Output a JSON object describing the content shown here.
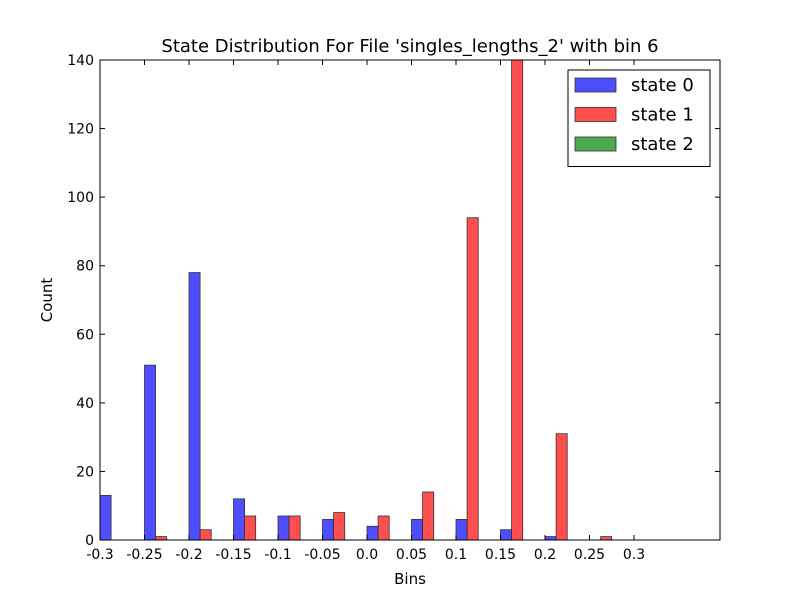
{
  "chart_data": {
    "type": "bar",
    "title": "State Distribution For File 'singles_lengths_2' with bin 6",
    "xlabel": "Bins",
    "ylabel": "Count",
    "ylim": [
      0,
      140
    ],
    "yticks": [
      0,
      20,
      40,
      60,
      80,
      100,
      120,
      140
    ],
    "categories": [
      "-0.3",
      "-0.25",
      "-0.2",
      "-0.15",
      "-0.1",
      "-0.05",
      "0.0",
      "0.05",
      "0.1",
      "0.15",
      "0.2",
      "0.25",
      "0.3"
    ],
    "series": [
      {
        "name": "state 0",
        "color": "#4444ff",
        "values": [
          13,
          51,
          78,
          12,
          7,
          6,
          4,
          6,
          6,
          3,
          1,
          0,
          0
        ]
      },
      {
        "name": "state 1",
        "color": "#ff4444",
        "values": [
          0,
          1,
          3,
          7,
          7,
          8,
          7,
          14,
          94,
          141,
          31,
          1,
          0
        ]
      },
      {
        "name": "state 2",
        "color": "#44a444",
        "values": [
          0,
          0,
          0,
          0,
          0,
          0,
          0,
          0,
          0,
          0,
          0,
          0,
          0
        ]
      }
    ],
    "legend_position": "top-right",
    "grid": false
  }
}
